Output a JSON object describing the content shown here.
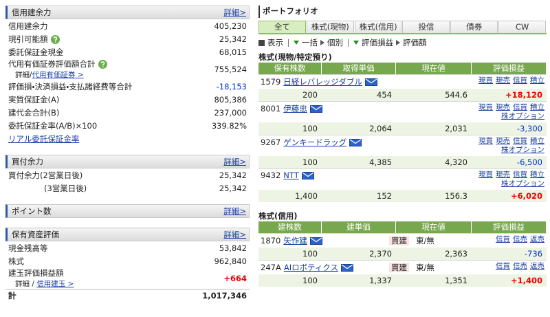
{
  "left": {
    "panels": [
      {
        "title": "信用建余力",
        "link": "詳細>",
        "rows": [
          {
            "label": "信用建余力",
            "value": "405,230"
          },
          {
            "label": "現引可能額",
            "value": "25,342",
            "help": true
          },
          {
            "label": "委託保証金現金",
            "value": "68,015"
          },
          {
            "label": "代用有価証券評価額合計",
            "value": "755,524",
            "help": true,
            "sub": {
              "prefix": "詳細/",
              "link": "代用有価証券 >"
            }
          },
          {
            "label": "評価損・決済損益・支払諸経費等合計",
            "value": "-18,153"
          },
          {
            "label": "実質保証金(A)",
            "value": "805,386"
          },
          {
            "label": "建代金合計(B)",
            "value": "237,000"
          },
          {
            "label": "委託保証金率(A/B)×100",
            "value": "339.82%"
          },
          {
            "link": "リアル委託保証金率"
          }
        ]
      },
      {
        "title": "買付余力",
        "link": "詳細>",
        "rows": [
          {
            "label": "買付余力(2営業日後)",
            "value": "25,342"
          },
          {
            "label": "(3営業日後)",
            "value": "25,342",
            "indent": true
          }
        ]
      },
      {
        "title": "ポイント数",
        "link": "詳細>"
      },
      {
        "title": "保有資産評価",
        "link": "詳細>",
        "rows": [
          {
            "label": "現金残高等",
            "value": "53,842"
          },
          {
            "label": "株式",
            "value": "962,840"
          },
          {
            "label": "建玉評価損益額",
            "value": "+664",
            "sub": {
              "prefix": "詳細 / ",
              "link": "信用建玉 >"
            }
          },
          {
            "label": "計",
            "value": "1,017,346",
            "bold": true
          }
        ]
      }
    ]
  },
  "portfolio": {
    "title": "ポートフォリオ",
    "tabs": [
      "全て",
      "株式(現物)",
      "株式(信用)",
      "投信",
      "債券",
      "CW"
    ],
    "toolbar": [
      "表示",
      "一括",
      "個別",
      "評価損益",
      "評価額"
    ],
    "sections": [
      {
        "title": "株式(現物/特定預り)",
        "headers": [
          "保有株数",
          "取得単価",
          "現在値",
          "評価損益"
        ],
        "rows": [
          {
            "code": "1579",
            "name": "日経レバレッジダブル",
            "links": [
              [
                "現買",
                "現売",
                "信買",
                "積立"
              ]
            ],
            "values": [
              "200",
              "454",
              "544.6",
              "+18,120"
            ]
          },
          {
            "code": "8001",
            "name": "伊藤忠",
            "links": [
              [
                "現買",
                "現売",
                "信買",
                "積立"
              ],
              [
                "株オプション"
              ]
            ],
            "values": [
              "100",
              "2,064",
              "2,031",
              "-3,300"
            ]
          },
          {
            "code": "9267",
            "name": "ゲンキードラッグ",
            "links": [
              [
                "現買",
                "現売",
                "信買",
                "積立"
              ],
              [
                "株オプション"
              ]
            ],
            "values": [
              "100",
              "4,385",
              "4,320",
              "-6,500"
            ]
          },
          {
            "code": "9432",
            "name": "NTT",
            "links": [
              [
                "現買",
                "現売",
                "信買",
                "積立"
              ],
              [
                "株オプション"
              ]
            ],
            "values": [
              "1,400",
              "152",
              "156.3",
              "+6,020"
            ]
          }
        ]
      },
      {
        "title": "株式(信用)",
        "headers": [
          "建株数",
          "建単価",
          "現在値",
          "評価損益"
        ],
        "rows": [
          {
            "code": "1870",
            "name": "矢作建",
            "side": "買建",
            "market": "東/無",
            "links": [
              [
                "信買",
                "信売",
                "返売"
              ]
            ],
            "values": [
              "100",
              "2,370",
              "2,363",
              "-736"
            ]
          },
          {
            "code": "247A",
            "name": "AIロボティクス",
            "side": "買建",
            "market": "東/無",
            "links": [
              [
                "信買",
                "信売",
                "返売"
              ]
            ],
            "values": [
              "100",
              "1,337",
              "1,351",
              "+1,400"
            ]
          }
        ]
      }
    ]
  }
}
